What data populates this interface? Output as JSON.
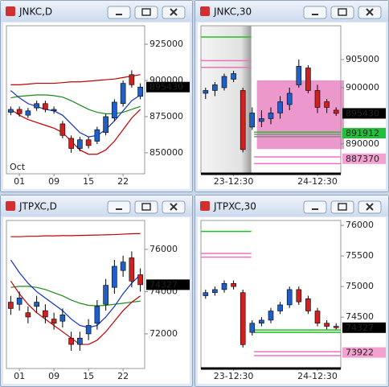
{
  "windows": [
    {
      "title": "JNKC,D",
      "chart": {
        "type": "candlestick",
        "ylim": [
          835500,
          937800
        ],
        "yticks": [
          850000,
          875000,
          900000,
          925000
        ],
        "period_label": "Oct",
        "categories": [
          null,
          "01",
          null,
          null,
          null,
          "09",
          null,
          null,
          null,
          "15",
          null,
          null,
          null,
          "22",
          null,
          null
        ],
        "up_color": "#1e5fc8",
        "down_color": "#d02020",
        "open": [
          878000,
          880000,
          876000,
          881000,
          884000,
          879000,
          870000,
          860000,
          853000,
          859000,
          858000,
          864000,
          874000,
          884000,
          904000,
          889000
        ],
        "high": [
          882000,
          882000,
          881000,
          886000,
          886000,
          882000,
          872000,
          862000,
          861000,
          861000,
          868000,
          877000,
          887000,
          900000,
          907000,
          898000
        ],
        "low": [
          876000,
          875000,
          874000,
          879000,
          878000,
          877000,
          860000,
          850000,
          851000,
          853000,
          856000,
          862000,
          872000,
          882000,
          895000,
          887000
        ],
        "close": [
          880000,
          877000,
          879000,
          884000,
          880000,
          880000,
          862000,
          853000,
          859000,
          855000,
          866000,
          875000,
          885000,
          898000,
          897000,
          895430
        ],
        "lines": [
          {
            "color": "#c00000",
            "values": [
              897000,
              897000,
              897500,
              898000,
              898000,
              898000,
              898500,
              899000,
              899000,
              899500,
              900000,
              900500,
              901000,
              902000,
              903000,
              904000
            ]
          },
          {
            "color": "#1a8a1a",
            "values": [
              888000,
              889000,
              889500,
              890000,
              890000,
              889500,
              888500,
              886000,
              883000,
              880000,
              878000,
              877000,
              877000,
              878000,
              880000,
              882000
            ]
          },
          {
            "color": "#1030c0",
            "values": [
              893000,
              888000,
              884000,
              882000,
              880000,
              879000,
              876000,
              870000,
              864000,
              861000,
              862000,
              866000,
              872000,
              879000,
              886000,
              890000
            ]
          },
          {
            "color": "#c00000",
            "values": [
              880000,
              876000,
              873000,
              871000,
              869000,
              867000,
              864000,
              858000,
              852000,
              849000,
              849000,
              852000,
              858000,
              866000,
              874000,
              880000
            ]
          }
        ],
        "price_labels": [
          {
            "value": 895430,
            "color": "#000000",
            "text_color": "#ffffff"
          }
        ]
      }
    },
    {
      "title": "JNKC,30",
      "chart": {
        "type": "candlestick",
        "ylim": [
          884700,
          911000
        ],
        "yticks": [
          890000,
          900000,
          905000
        ],
        "categories": [
          null,
          null,
          null,
          "23-12:30",
          null,
          null,
          null,
          null,
          null,
          null,
          null,
          null,
          "24-12:30",
          null,
          null
        ],
        "up_color": "#1e5fc8",
        "down_color": "#d02020",
        "open": [
          899000,
          899500,
          900000,
          901500,
          899500,
          893000,
          894000,
          894500,
          895500,
          897000,
          900500,
          903500,
          899500,
          897500,
          896000
        ],
        "high": [
          900000,
          901000,
          902500,
          903000,
          900000,
          896500,
          896000,
          896500,
          898500,
          900000,
          905000,
          904000,
          900500,
          898000,
          896500
        ],
        "low": [
          898000,
          898500,
          899500,
          901000,
          888500,
          892500,
          893000,
          893500,
          894500,
          896000,
          900000,
          899000,
          895500,
          895500,
          895000
        ],
        "close": [
          899500,
          900500,
          902000,
          902500,
          889000,
          895500,
          894500,
          895500,
          897500,
          899000,
          903800,
          899500,
          896500,
          896500,
          895430
        ],
        "zone": [
          889100,
          901300
        ],
        "zone_color": "#e986c4",
        "levels": [
          {
            "value": 909000,
            "color": "#22c022",
            "segment": "left"
          },
          {
            "value": 904800,
            "color": "#f070c0",
            "segment": "left"
          },
          {
            "value": 903600,
            "color": "#f070c0",
            "segment": "left"
          },
          {
            "value": 892100,
            "color": "#22c022",
            "segment": "right"
          },
          {
            "value": 891700,
            "color": "#888888",
            "segment": "right"
          },
          {
            "value": 891300,
            "color": "#888888",
            "segment": "right"
          },
          {
            "value": 887700,
            "color": "#f070c0",
            "segment": "right"
          },
          {
            "value": 886500,
            "color": "#f070c0",
            "segment": "right"
          }
        ],
        "price_labels": [
          {
            "value": 895430,
            "color": "#000000",
            "text_color": "#ffffff"
          },
          {
            "value": 891912,
            "color": "#22c03a",
            "text_color": "#000000"
          },
          {
            "value": 887370,
            "color": "#f4a0d0",
            "text_color": "#000000"
          }
        ]
      }
    },
    {
      "title": "JTPXC,D",
      "chart": {
        "type": "candlestick",
        "ylim": [
          70360,
          77370
        ],
        "yticks": [
          72000,
          74000,
          76000
        ],
        "categories": [
          null,
          "01",
          null,
          null,
          null,
          "09",
          null,
          null,
          null,
          "15",
          null,
          null,
          null,
          "22",
          null,
          null
        ],
        "up_color": "#1e5fc8",
        "down_color": "#d02020",
        "open": [
          73500,
          73400,
          73000,
          73300,
          73100,
          72700,
          72600,
          71800,
          71500,
          72000,
          72500,
          73400,
          74200,
          75000,
          75600,
          74800
        ],
        "high": [
          73800,
          74000,
          73300,
          73800,
          73400,
          73000,
          73200,
          72100,
          72100,
          72700,
          73600,
          74600,
          75500,
          75700,
          75900,
          75100
        ],
        "low": [
          72900,
          73100,
          72500,
          73000,
          72500,
          72200,
          72300,
          71200,
          71200,
          71700,
          72200,
          73100,
          73900,
          74700,
          74200,
          74000
        ],
        "close": [
          73200,
          73700,
          72800,
          73500,
          72800,
          72500,
          72900,
          71500,
          71800,
          72400,
          73300,
          74300,
          75200,
          75400,
          74500,
          74327
        ],
        "lines": [
          {
            "color": "#c00000",
            "values": [
              76600,
              76600,
              76620,
              76620,
              76640,
              76640,
              76650,
              76650,
              76660,
              76670,
              76680,
              76690,
              76700,
              76720,
              76740,
              76750
            ]
          },
          {
            "color": "#1a8a1a",
            "values": [
              74200,
              74250,
              74250,
              74200,
              74100,
              73950,
              73800,
              73600,
              73450,
              73350,
              73330,
              73350,
              73400,
              73450,
              73500,
              73550
            ]
          },
          {
            "color": "#1030c0",
            "values": [
              75500,
              74900,
              74400,
              74000,
              73700,
              73400,
              73100,
              72700,
              72400,
              72300,
              72400,
              72800,
              73300,
              73900,
              74400,
              74800
            ]
          },
          {
            "color": "#c00000",
            "values": [
              74500,
              73900,
              73400,
              73000,
              72700,
              72400,
              72100,
              71800,
              71500,
              71500,
              71700,
              72100,
              72600,
              73100,
              73500,
              73800
            ]
          }
        ],
        "price_labels": [
          {
            "value": 74327,
            "color": "#000000",
            "text_color": "#ffffff"
          }
        ]
      }
    },
    {
      "title": "JTPXC,30",
      "chart": {
        "type": "candlestick",
        "ylim": [
          73660,
          76080
        ],
        "yticks": [
          74500,
          75000,
          75500,
          76000
        ],
        "categories": [
          null,
          null,
          null,
          "23-12:30",
          null,
          null,
          null,
          null,
          null,
          null,
          null,
          null,
          "24-12:30",
          null,
          null
        ],
        "up_color": "#1e5fc8",
        "down_color": "#d02020",
        "open": [
          74850,
          74900,
          74950,
          75050,
          74900,
          74250,
          74400,
          74450,
          74600,
          74700,
          74950,
          74800,
          74600,
          74400,
          74350
        ],
        "high": [
          74950,
          75000,
          75100,
          75100,
          74950,
          74450,
          74500,
          74650,
          74750,
          75000,
          75000,
          74850,
          74650,
          74450,
          74400
        ],
        "low": [
          74800,
          74850,
          74900,
          74950,
          74000,
          74200,
          74350,
          74400,
          74550,
          74650,
          74700,
          74550,
          74350,
          74300,
          74300
        ],
        "close": [
          74900,
          74950,
          75050,
          75000,
          74050,
          74400,
          74450,
          74600,
          74700,
          74950,
          74750,
          74600,
          74400,
          74350,
          74327
        ],
        "levels": [
          {
            "value": 75900,
            "color": "#22c022",
            "segment": "left"
          },
          {
            "value": 75540,
            "color": "#f070c0",
            "segment": "left"
          },
          {
            "value": 75480,
            "color": "#f070c0",
            "segment": "left"
          },
          {
            "value": 74290,
            "color": "#22c022",
            "segment": "right"
          },
          {
            "value": 74250,
            "color": "#22c022",
            "segment": "right"
          },
          {
            "value": 73934,
            "color": "#f070c0",
            "segment": "right"
          },
          {
            "value": 73870,
            "color": "#f070c0",
            "segment": "right"
          }
        ],
        "price_labels": [
          {
            "value": 74327,
            "color": "#000000",
            "text_color": "#ffffff"
          },
          {
            "value": 73922,
            "color": "#f4a0d0",
            "text_color": "#000000"
          }
        ]
      }
    }
  ]
}
